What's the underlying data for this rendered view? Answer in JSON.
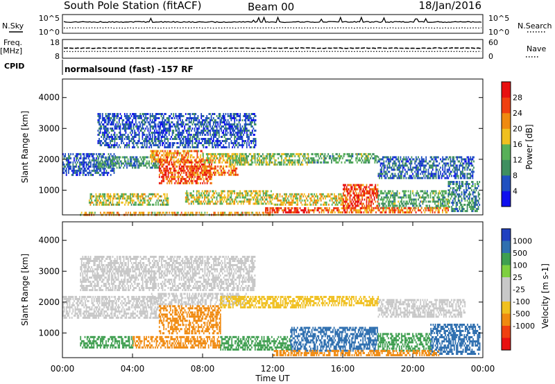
{
  "header": {
    "title": "South Pole Station (fitACF)",
    "beam": "Beam 00",
    "date": "18/Jan/2016"
  },
  "side_labels": {
    "nsky": "N.Sky",
    "freq": "Freq.",
    "freq_unit": "[MHz]",
    "cpid": "CPID",
    "nsearch": "N.Search",
    "nave": "Nave"
  },
  "program": "normalsound (fast) -157 RF",
  "colors": {
    "power_scale": [
      "#1010ee",
      "#2050c0",
      "#3f8f60",
      "#58b058",
      "#f0c020",
      "#f08a10",
      "#f04010",
      "#e81010"
    ],
    "velocity_scale": [
      "#e81010",
      "#f04010",
      "#f08a10",
      "#f0c020",
      "#c8c8c8",
      "#c8c8c8",
      "#7ecf40",
      "#3f9f50",
      "#3070b0",
      "#2040c0"
    ],
    "line": "#000000"
  },
  "chart_data": [
    {
      "type": "line",
      "name": "noise-panel",
      "series": [
        {
          "name": "N.Sky"
        },
        {
          "name": "N.Search"
        }
      ],
      "yticks_left": [
        "10^5",
        "10^0"
      ],
      "yticks_right": [
        "10^5",
        "10^0"
      ]
    },
    {
      "type": "line",
      "name": "frequency-panel",
      "series": [
        {
          "name": "Freq."
        },
        {
          "name": "Nave"
        }
      ],
      "yticks_left": [
        "18",
        "8"
      ],
      "yticks_right": [
        "60",
        "0"
      ]
    },
    {
      "type": "heatmap",
      "name": "power-panel",
      "ylabel": "Slant Range [km]",
      "xlim": [
        0,
        24
      ],
      "ylim": [
        200,
        4600
      ],
      "yticks": [
        1000,
        2000,
        3000,
        4000
      ],
      "colorbar": {
        "label": "Power [dB]",
        "ticks": [
          4,
          8,
          12,
          16,
          20,
          24,
          28
        ],
        "range": [
          0,
          32
        ]
      },
      "bands": [
        {
          "t": [
            0.0,
            3.0
          ],
          "r": [
            1500,
            2200
          ],
          "v": 6
        },
        {
          "t": [
            2.0,
            5.5
          ],
          "r": [
            1700,
            2100
          ],
          "v": 10
        },
        {
          "t": [
            5.0,
            8.0
          ],
          "r": [
            1950,
            2300
          ],
          "v": 22
        },
        {
          "t": [
            5.5,
            8.5
          ],
          "r": [
            1200,
            2000
          ],
          "v": 26
        },
        {
          "t": [
            7.0,
            10.0
          ],
          "r": [
            1500,
            1800
          ],
          "v": 24
        },
        {
          "t": [
            8.0,
            10.5
          ],
          "r": [
            1900,
            2200
          ],
          "v": 18
        },
        {
          "t": [
            9.5,
            14.0
          ],
          "r": [
            1800,
            2200
          ],
          "v": 14
        },
        {
          "t": [
            14.0,
            18.0
          ],
          "r": [
            1900,
            2200
          ],
          "v": 12
        },
        {
          "t": [
            18.0,
            23.5
          ],
          "r": [
            1400,
            2100
          ],
          "v": 7
        },
        {
          "t": [
            1.5,
            6.0
          ],
          "r": [
            500,
            900
          ],
          "v": 16
        },
        {
          "t": [
            7.0,
            12.0
          ],
          "r": [
            550,
            1000
          ],
          "v": 17
        },
        {
          "t": [
            12.0,
            16.0
          ],
          "r": [
            550,
            900
          ],
          "v": 18
        },
        {
          "t": [
            16.0,
            18.0
          ],
          "r": [
            450,
            1200
          ],
          "v": 27
        },
        {
          "t": [
            18.0,
            22.0
          ],
          "r": [
            450,
            1000
          ],
          "v": 12
        },
        {
          "t": [
            22.0,
            23.8
          ],
          "r": [
            300,
            1300
          ],
          "v": 9
        },
        {
          "t": [
            11.5,
            14.0
          ],
          "r": [
            250,
            450
          ],
          "v": 29
        },
        {
          "t": [
            14.0,
            22.0
          ],
          "r": [
            300,
            450
          ],
          "v": 24
        },
        {
          "t": [
            1.0,
            12.0
          ],
          "r": [
            200,
            300
          ],
          "v": 20
        },
        {
          "t": [
            2.0,
            11.0
          ],
          "r": [
            2400,
            3500
          ],
          "v": 6
        }
      ]
    },
    {
      "type": "heatmap",
      "name": "velocity-panel",
      "ylabel": "Slant Range [km]",
      "xlabel": "Time UT",
      "xlim": [
        0,
        24
      ],
      "ylim": [
        200,
        4600
      ],
      "yticks": [
        1000,
        2000,
        3000,
        4000
      ],
      "xticks": [
        "00:00",
        "04:00",
        "08:00",
        "12:00",
        "16:00",
        "20:00",
        "00:00"
      ],
      "colorbar": {
        "label": "Velocity [m s-1]",
        "ticks": [
          1000,
          500,
          100,
          25,
          -25,
          -100,
          -500,
          -1000
        ]
      },
      "bands": [
        {
          "t": [
            0.0,
            5.5
          ],
          "r": [
            1500,
            2200
          ],
          "v": 0
        },
        {
          "t": [
            5.0,
            10.5
          ],
          "r": [
            1900,
            2300
          ],
          "v": 0
        },
        {
          "t": [
            5.5,
            9.0
          ],
          "r": [
            1000,
            1900
          ],
          "v": -180
        },
        {
          "t": [
            4.0,
            9.0
          ],
          "r": [
            550,
            900
          ],
          "v": -200
        },
        {
          "t": [
            9.0,
            14.0
          ],
          "r": [
            1800,
            2200
          ],
          "v": -40
        },
        {
          "t": [
            14.0,
            18.0
          ],
          "r": [
            1900,
            2200
          ],
          "v": -60
        },
        {
          "t": [
            18.0,
            23.0
          ],
          "r": [
            1500,
            2100
          ],
          "v": 0
        },
        {
          "t": [
            1.0,
            4.0
          ],
          "r": [
            550,
            900
          ],
          "v": 150
        },
        {
          "t": [
            9.0,
            13.0
          ],
          "r": [
            450,
            900
          ],
          "v": 200
        },
        {
          "t": [
            13.0,
            18.0
          ],
          "r": [
            450,
            1200
          ],
          "v": 700
        },
        {
          "t": [
            18.0,
            21.0
          ],
          "r": [
            450,
            1000
          ],
          "v": 250
        },
        {
          "t": [
            21.0,
            23.8
          ],
          "r": [
            300,
            1300
          ],
          "v": 800
        },
        {
          "t": [
            12.0,
            21.5
          ],
          "r": [
            300,
            450
          ],
          "v": -200
        },
        {
          "t": [
            1.0,
            11.0
          ],
          "r": [
            2400,
            3500
          ],
          "v": 0
        }
      ]
    }
  ]
}
